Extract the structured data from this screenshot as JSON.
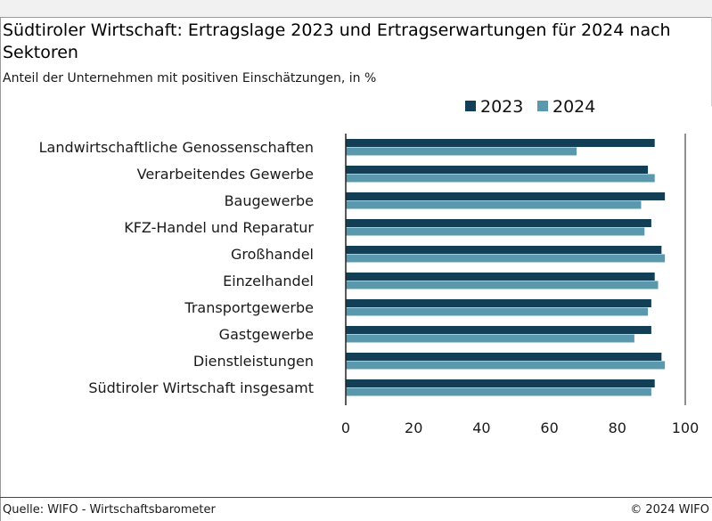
{
  "title": "Südtiroler Wirtschaft: Ertragslage 2023 und Ertragserwartungen für 2024 nach Sektoren",
  "subtitle": "Anteil der Unternehmen mit positiven Einschätzungen, in %",
  "source": "Quelle: WIFO - Wirtschaftsbarometer",
  "copyright": "© 2024 WIFO",
  "colors": {
    "series_2023": "#123f55",
    "series_2024": "#5a98ad",
    "axis": "#222222"
  },
  "chart_data": {
    "type": "bar",
    "orientation": "horizontal",
    "categories": [
      "Landwirtschaftliche Genossenschaften",
      "Verarbeitendes Gewerbe",
      "Baugewerbe",
      "KFZ-Handel und Reparatur",
      "Großhandel",
      "Einzelhandel",
      "Transportgewerbe",
      "Gastgewerbe",
      "Dienstleistungen",
      "Südtiroler Wirtschaft insgesamt"
    ],
    "series": [
      {
        "name": "2023",
        "values": [
          91,
          89,
          94,
          90,
          93,
          91,
          90,
          90,
          93,
          91
        ]
      },
      {
        "name": "2024",
        "values": [
          68,
          91,
          87,
          88,
          94,
          92,
          89,
          85,
          94,
          90
        ]
      }
    ],
    "xlim": [
      0,
      100
    ],
    "xticks": [
      0,
      20,
      40,
      60,
      80,
      100
    ],
    "legend_position": "top-right",
    "grid": false
  }
}
